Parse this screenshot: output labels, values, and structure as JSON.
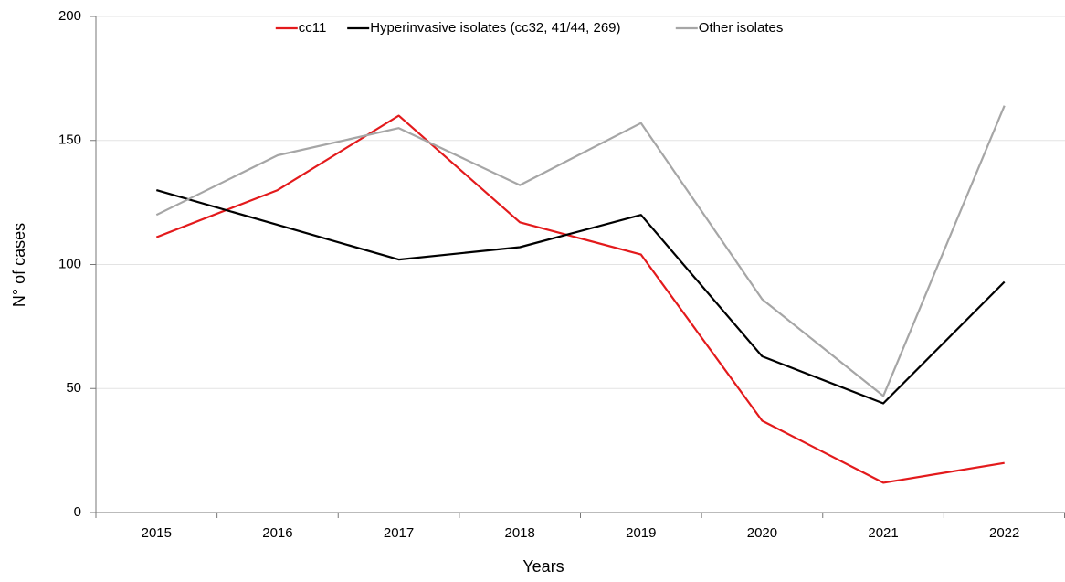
{
  "chart_data": {
    "type": "line",
    "x_label": "Years",
    "y_label": "N° of cases",
    "categories": [
      "2015",
      "2016",
      "2017",
      "2018",
      "2019",
      "2020",
      "2021",
      "2022"
    ],
    "series": [
      {
        "name": "cc11",
        "color": "#e31a1c",
        "values": [
          111,
          130,
          160,
          117,
          104,
          37,
          12,
          20
        ]
      },
      {
        "name": "Hyperinvasive isolates (cc32, 41/44, 269)",
        "color": "#000000",
        "values": [
          130,
          116,
          102,
          107,
          120,
          63,
          44,
          93
        ]
      },
      {
        "name": "Other isolates",
        "color": "#a6a6a6",
        "values": [
          120,
          144,
          155,
          132,
          157,
          86,
          47,
          164
        ]
      }
    ],
    "ylim": [
      0,
      200
    ],
    "yticks": [
      0,
      50,
      100,
      150,
      200
    ],
    "grid": true,
    "legend": "top"
  }
}
